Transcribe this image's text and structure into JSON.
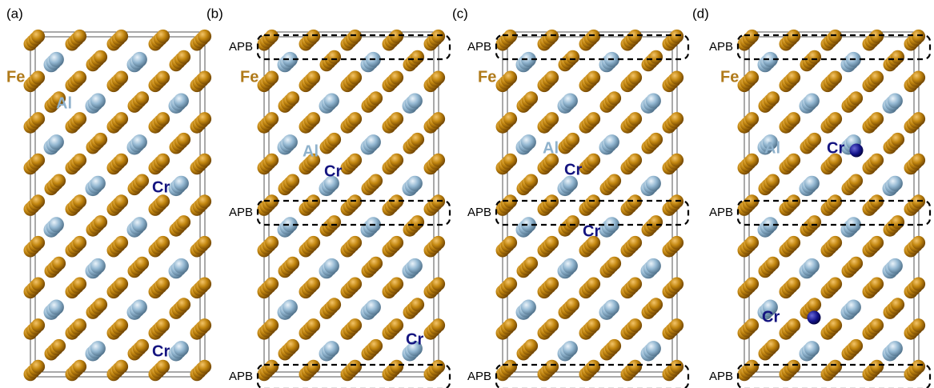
{
  "panels": [
    {
      "label": "(a)",
      "labels": [
        "Fe",
        "Al",
        "Cr",
        "Cr"
      ],
      "apb": []
    },
    {
      "label": "(b)",
      "labels": [
        "Fe",
        "Al",
        "Cr",
        "Cr"
      ],
      "apb": [
        "APB",
        "APB",
        "APB"
      ]
    },
    {
      "label": "(c)",
      "labels": [
        "Fe",
        "Al",
        "Cr",
        "Cr"
      ],
      "apb": [
        "APB",
        "APB",
        "APB"
      ]
    },
    {
      "label": "(d)",
      "labels": [
        "Fe",
        "Al",
        "Cr",
        "Cr"
      ],
      "apb": [
        "APB",
        "APB",
        "APB"
      ]
    }
  ]
}
